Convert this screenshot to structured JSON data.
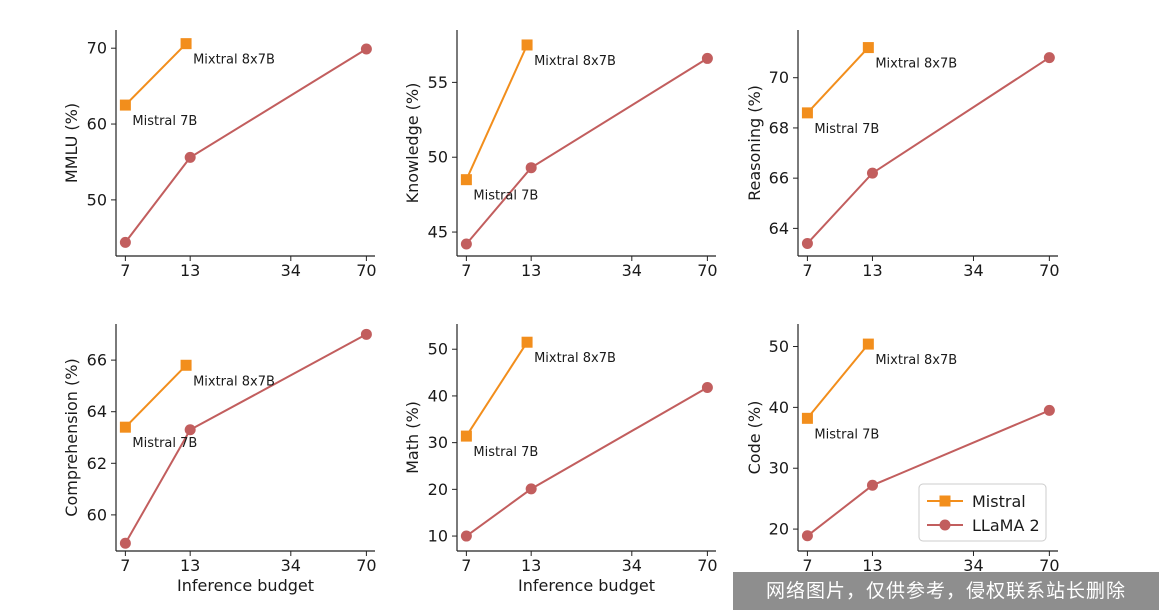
{
  "chart_data": [
    {
      "type": "line",
      "title": "",
      "xlabel": "",
      "ylabel": "MMLU (%)",
      "xscale": "log",
      "xlim": [
        6.4,
        76
      ],
      "ylim": [
        42.6,
        72.4
      ],
      "xticks": [
        7,
        13,
        34,
        70
      ],
      "yticks": [
        50,
        60,
        70
      ],
      "series": [
        {
          "name": "Mistral",
          "x": [
            7,
            12.5
          ],
          "y": [
            62.5,
            70.6
          ],
          "labels": [
            "Mistral 7B",
            "Mixtral 8x7B"
          ]
        },
        {
          "name": "LLaMA 2",
          "x": [
            7,
            13,
            70
          ],
          "y": [
            44.4,
            55.6,
            69.9
          ]
        }
      ]
    },
    {
      "type": "line",
      "title": "",
      "xlabel": "",
      "ylabel": "Knowledge (%)",
      "xscale": "log",
      "xlim": [
        6.4,
        76
      ],
      "ylim": [
        43.4,
        58.5
      ],
      "xticks": [
        7,
        13,
        34,
        70
      ],
      "yticks": [
        45,
        50,
        55
      ],
      "series": [
        {
          "name": "Mistral",
          "x": [
            7,
            12.5
          ],
          "y": [
            48.5,
            57.5
          ],
          "labels": [
            "Mistral 7B",
            "Mixtral 8x7B"
          ]
        },
        {
          "name": "LLaMA 2",
          "x": [
            7,
            13,
            70
          ],
          "y": [
            44.2,
            49.3,
            56.6
          ]
        }
      ]
    },
    {
      "type": "line",
      "title": "",
      "xlabel": "",
      "ylabel": "Reasoning (%)",
      "xscale": "log",
      "xlim": [
        6.4,
        76
      ],
      "ylim": [
        62.9,
        71.9
      ],
      "xticks": [
        7,
        13,
        34,
        70
      ],
      "yticks": [
        64,
        66,
        68,
        70
      ],
      "series": [
        {
          "name": "Mistral",
          "x": [
            7,
            12.5
          ],
          "y": [
            68.6,
            71.2
          ],
          "labels": [
            "Mistral 7B",
            "Mixtral 8x7B"
          ]
        },
        {
          "name": "LLaMA 2",
          "x": [
            7,
            13,
            70
          ],
          "y": [
            63.4,
            66.2,
            70.8
          ]
        }
      ]
    },
    {
      "type": "line",
      "title": "",
      "xlabel": "Inference budget",
      "ylabel": "Comprehension (%)",
      "xscale": "log",
      "xlim": [
        6.4,
        76
      ],
      "ylim": [
        58.6,
        67.4
      ],
      "xticks": [
        7,
        13,
        34,
        70
      ],
      "yticks": [
        60,
        62,
        64,
        66
      ],
      "series": [
        {
          "name": "Mistral",
          "x": [
            7,
            12.5
          ],
          "y": [
            63.4,
            65.8
          ],
          "labels": [
            "Mistral 7B",
            "Mixtral 8x7B"
          ]
        },
        {
          "name": "LLaMA 2",
          "x": [
            7,
            13,
            70
          ],
          "y": [
            58.9,
            63.3,
            67.0
          ]
        }
      ]
    },
    {
      "type": "line",
      "title": "",
      "xlabel": "Inference budget",
      "ylabel": "Math (%)",
      "xscale": "log",
      "xlim": [
        6.4,
        76
      ],
      "ylim": [
        6.8,
        55.4
      ],
      "xticks": [
        7,
        13,
        34,
        70
      ],
      "yticks": [
        10,
        20,
        30,
        40,
        50
      ],
      "series": [
        {
          "name": "Mistral",
          "x": [
            7,
            12.5
          ],
          "y": [
            31.4,
            51.5
          ],
          "labels": [
            "Mistral 7B",
            "Mixtral 8x7B"
          ]
        },
        {
          "name": "LLaMA 2",
          "x": [
            7,
            13,
            70
          ],
          "y": [
            10.0,
            20.1,
            41.8
          ]
        }
      ]
    },
    {
      "type": "line",
      "title": "",
      "xlabel": "",
      "ylabel": "Code (%)",
      "xscale": "log",
      "xlim": [
        6.4,
        76
      ],
      "ylim": [
        16.4,
        53.7
      ],
      "xticks": [
        7,
        13,
        34,
        70
      ],
      "yticks": [
        20,
        30,
        40,
        50
      ],
      "series": [
        {
          "name": "Mistral",
          "x": [
            7,
            12.5
          ],
          "y": [
            38.2,
            50.4
          ],
          "labels": [
            "Mistral 7B",
            "Mixtral 8x7B"
          ]
        },
        {
          "name": "LLaMA 2",
          "x": [
            7,
            13,
            70
          ],
          "y": [
            18.9,
            27.2,
            39.5
          ]
        }
      ]
    }
  ],
  "legend": {
    "placement": "bottom-right of Code panel",
    "entries": [
      {
        "name": "Mistral",
        "color": "#F28E1C",
        "marker": "square"
      },
      {
        "name": "LLaMA 2",
        "color": "#C25E5E",
        "marker": "circle"
      }
    ]
  },
  "colors": {
    "mistral": "#F28E1C",
    "llama": "#C25E5E"
  },
  "watermark": "网络图片，仅供参考，侵权联系站长删除"
}
